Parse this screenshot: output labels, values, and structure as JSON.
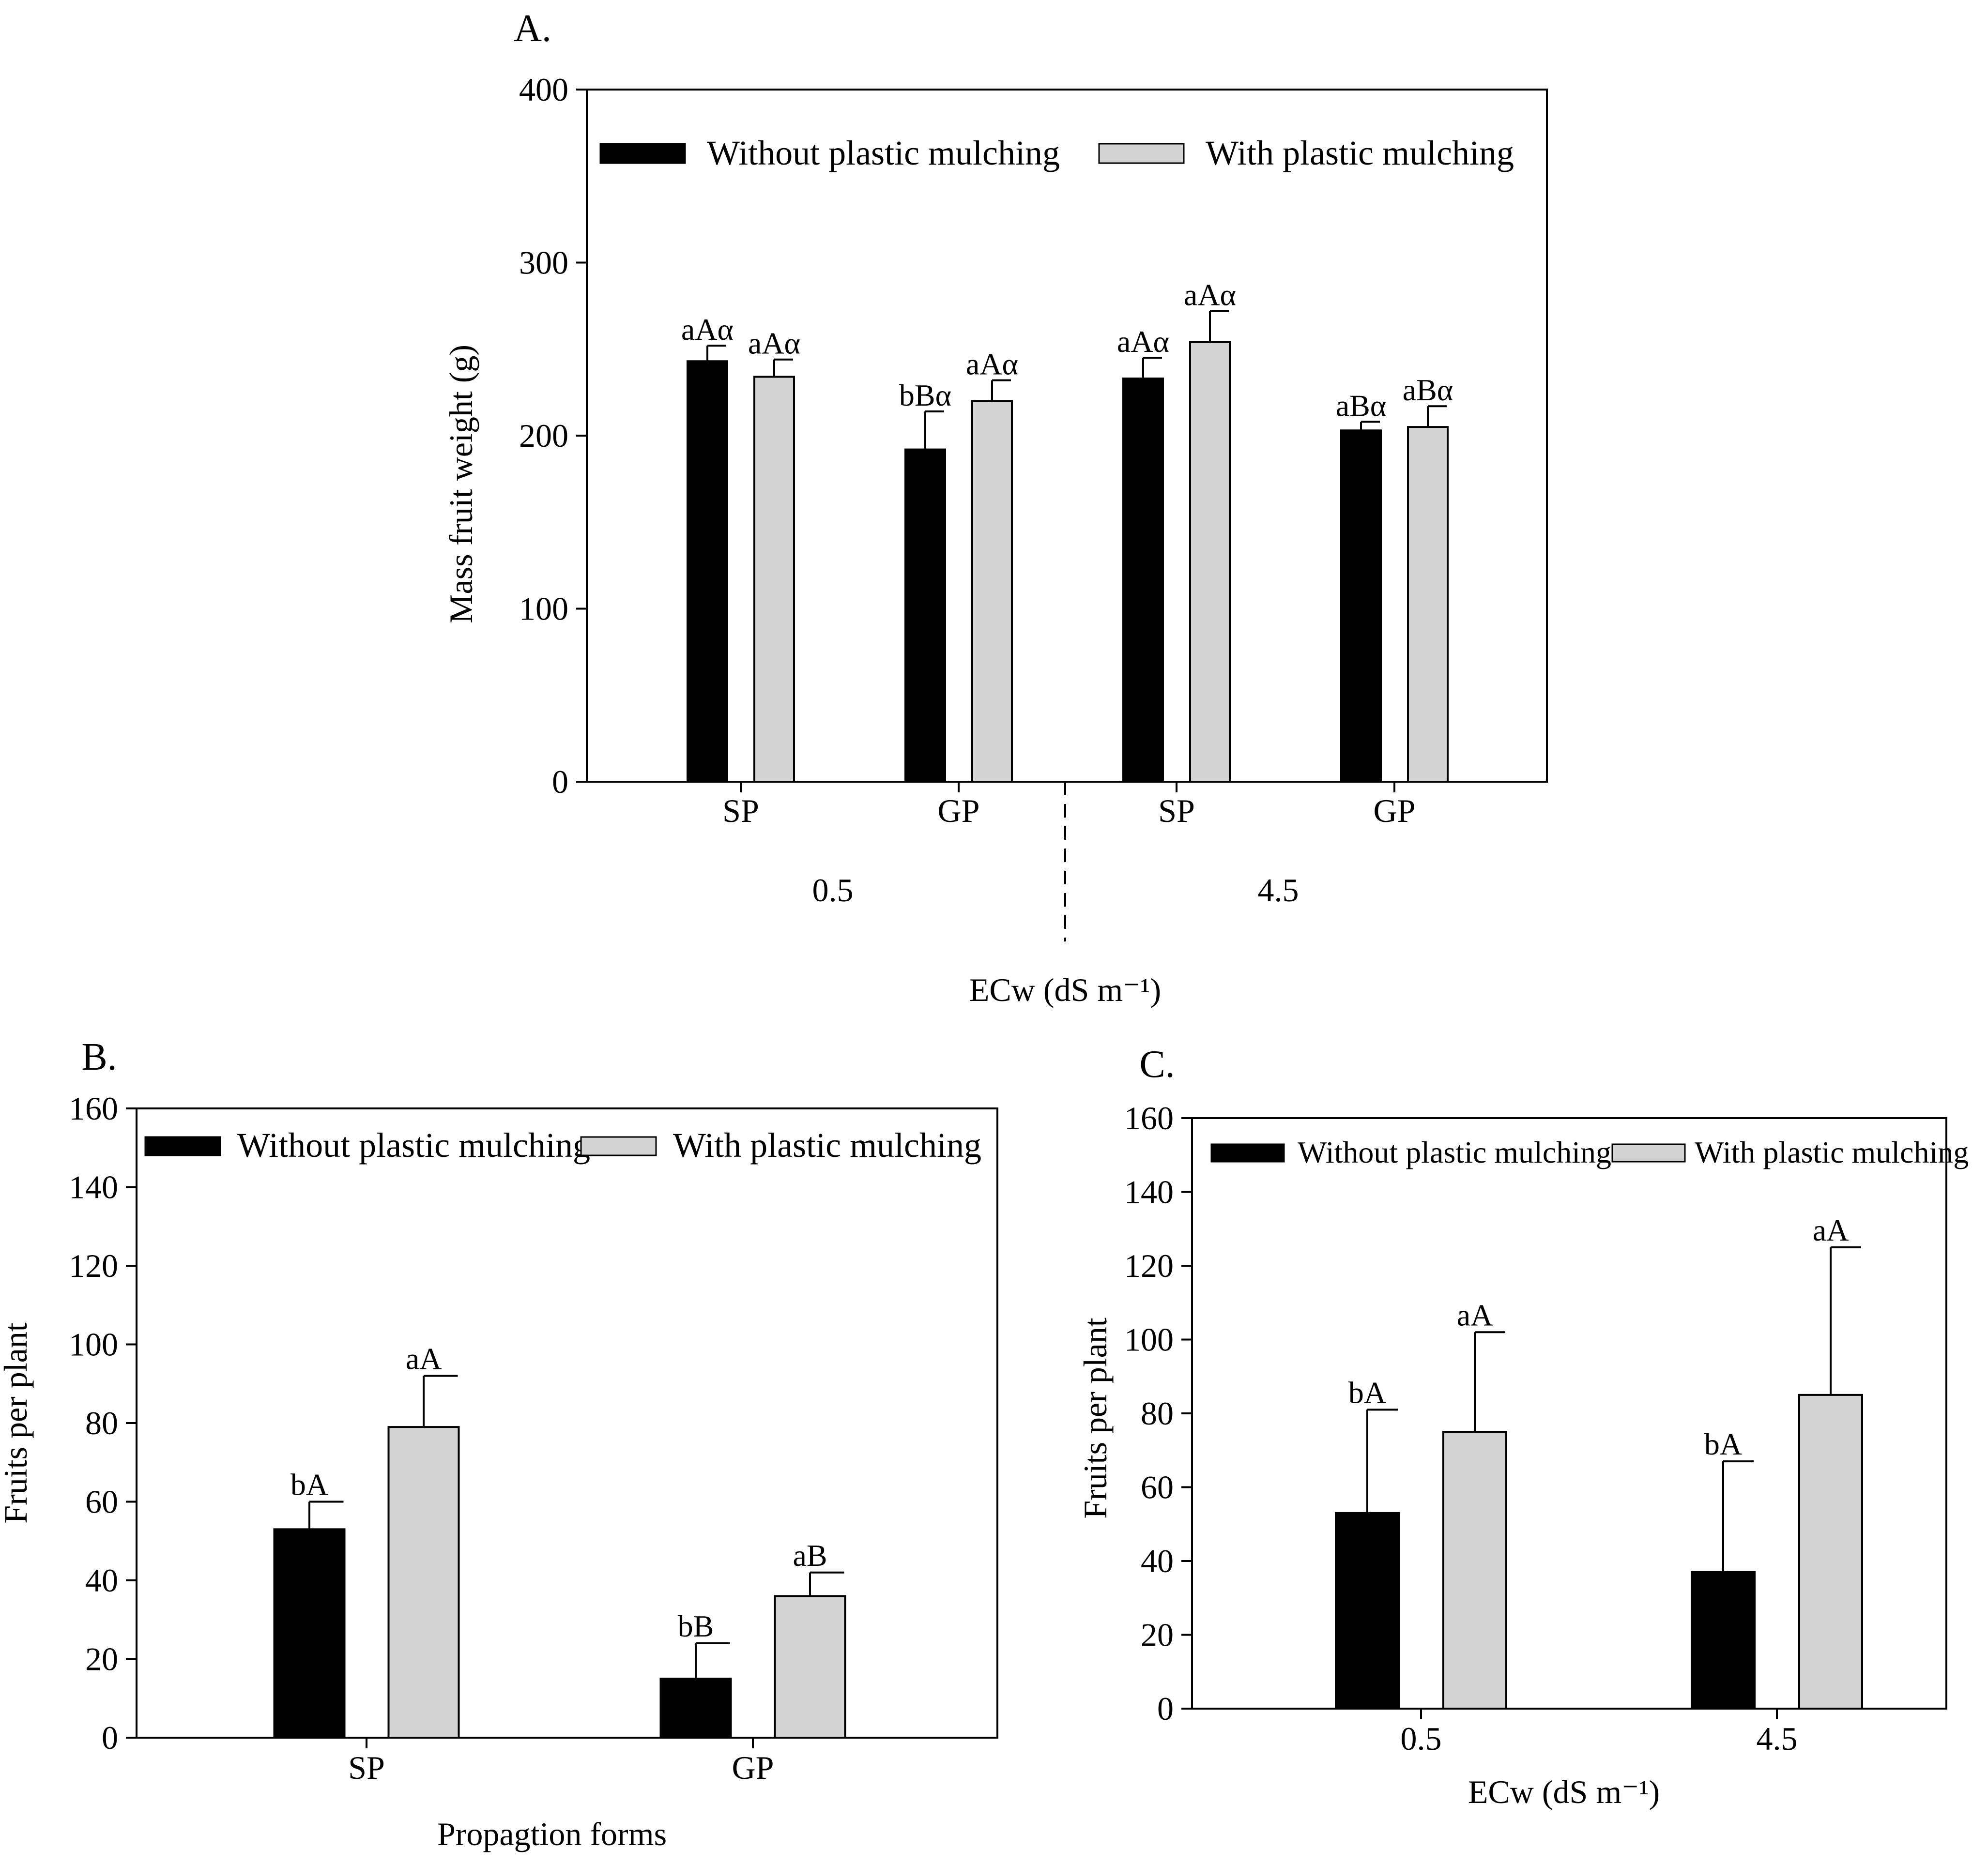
{
  "colors": {
    "without": "#000000",
    "with": "#d3d3d3",
    "axis": "#000000"
  },
  "legend": {
    "without": "Without plastic mulching",
    "with": "With plastic mulching"
  },
  "chart_data": [
    {
      "id": "A",
      "panel_label": "A.",
      "type": "bar",
      "ylabel": "Mass fruit weight (g)",
      "xlabel": "ECw (dS m⁻¹)",
      "ylim": [
        0,
        400
      ],
      "yticks": [
        0,
        100,
        200,
        300,
        400
      ],
      "legend_position": "top",
      "categories": [
        "SP",
        "GP",
        "SP",
        "GP"
      ],
      "groups": [
        "0.5",
        "4.5"
      ],
      "series": [
        {
          "name": "Without plastic mulching",
          "values": [
            243,
            192,
            233,
            203
          ],
          "errors": [
            9,
            22,
            12,
            5
          ],
          "labels": [
            "aAα",
            "bBα",
            "aAα",
            "aBα"
          ]
        },
        {
          "name": "With plastic mulching",
          "values": [
            234,
            220,
            254,
            205
          ],
          "errors": [
            10,
            12,
            18,
            12
          ],
          "labels": [
            "aAα",
            "aAα",
            "aAα",
            "aBα"
          ]
        }
      ]
    },
    {
      "id": "B",
      "panel_label": "B.",
      "type": "bar",
      "ylabel": "Fruits per plant",
      "xlabel": "Propagtion forms",
      "ylim": [
        0,
        160
      ],
      "yticks": [
        0,
        20,
        40,
        60,
        80,
        100,
        120,
        140,
        160
      ],
      "legend_position": "top",
      "categories": [
        "SP",
        "GP"
      ],
      "series": [
        {
          "name": "Without plastic mulching",
          "values": [
            53,
            15
          ],
          "errors": [
            7,
            9
          ],
          "labels": [
            "bA",
            "bB"
          ]
        },
        {
          "name": "With plastic mulching",
          "values": [
            79,
            36
          ],
          "errors": [
            13,
            6
          ],
          "labels": [
            "aA",
            "aB"
          ]
        }
      ]
    },
    {
      "id": "C",
      "panel_label": "C.",
      "type": "bar",
      "ylabel": "Fruits per plant",
      "xlabel": "ECw (dS m⁻¹)",
      "ylim": [
        0,
        160
      ],
      "yticks": [
        0,
        20,
        40,
        60,
        80,
        100,
        120,
        140,
        160
      ],
      "legend_position": "top",
      "categories": [
        "0.5",
        "4.5"
      ],
      "series": [
        {
          "name": "Without plastic mulching",
          "values": [
            53,
            37
          ],
          "errors": [
            28,
            30
          ],
          "labels": [
            "bA",
            "bA"
          ]
        },
        {
          "name": "With plastic mulching",
          "values": [
            75,
            85
          ],
          "errors": [
            27,
            40
          ],
          "labels": [
            "aA",
            "aA"
          ]
        }
      ]
    }
  ]
}
